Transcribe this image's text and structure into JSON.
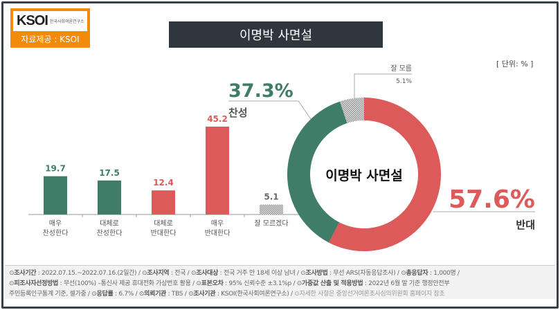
{
  "logo": {
    "brand": "KSOI",
    "subtitle": "한국사회여론연구소",
    "source": "자료제공 : KSOI",
    "color": "#f28a0c"
  },
  "title": "이명박 사면설",
  "unit": "[ 단위: % ]",
  "chart_data": [
    {
      "type": "bar",
      "categories": [
        "매우\n찬성한다",
        "대체로\n찬성한다",
        "대체로\n반대한다",
        "매우\n반대한다",
        "잘 모르겠다"
      ],
      "values": [
        19.7,
        17.5,
        12.4,
        45.2,
        5.1
      ],
      "colors": [
        "#3f7d68",
        "#3f7d68",
        "#dd5a5a",
        "#dd5a5a",
        "hatched-gray"
      ]
    },
    {
      "type": "pie",
      "donut": true,
      "center_label": "이명박 사면설",
      "slices": [
        {
          "label": "반대",
          "value": 57.6,
          "display": "57.6%",
          "color": "#dd5a5a"
        },
        {
          "label": "찬성",
          "value": 37.3,
          "display": "37.3%",
          "color": "#3f7d68"
        },
        {
          "label": "잘 모름",
          "value": 5.1,
          "display": "5.1%",
          "color": "hatched-gray"
        }
      ]
    }
  ],
  "footer": {
    "line1": [
      [
        "조사기간",
        "2022.07.15.~2022.07.16.(2일간)"
      ],
      [
        "조사지역",
        "전국"
      ],
      [
        "조사대상",
        "전국 거주 만 18세 이상 남녀"
      ],
      [
        "조사방법",
        "무선 ARS(자동응답조사)"
      ],
      [
        "총응답자",
        "1,000명"
      ]
    ],
    "line2": [
      [
        "피조사자선정방법",
        "무선(100%) –통신사 제공 휴대전화 가상번호 활용"
      ],
      [
        "표본오차",
        "95% 신뢰수준 ±3.1%p"
      ],
      [
        "가중값 산출 및 적용방법",
        "2022년 6월 말 기준 행정안전부"
      ]
    ],
    "line3_start": "주민등록인구통계 기준, 셀가중",
    "line3": [
      [
        "응답률",
        "6.7%"
      ],
      [
        "의뢰기관",
        "TBS"
      ],
      [
        "조사기관",
        "KSOI(한국사회여론연구소)"
      ]
    ],
    "note": "자세한 사항은 중앙선거여론조사심의위원회 홈페이지 참조"
  }
}
